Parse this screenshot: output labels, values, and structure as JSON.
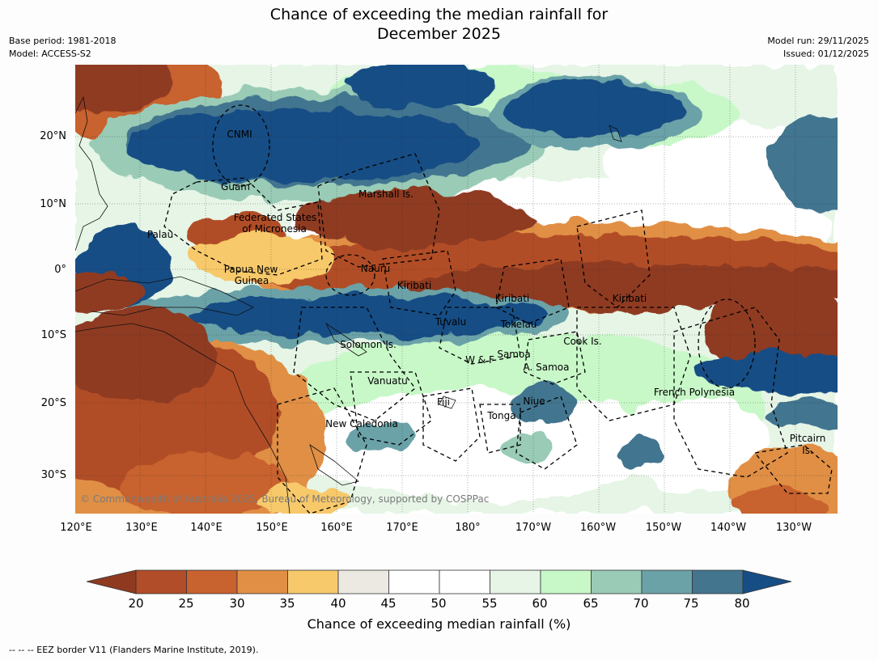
{
  "title_line1": "Chance of exceeding the median rainfall for",
  "title_line2": "December 2025",
  "base_period": "Base period: 1981-2018",
  "model": "Model: ACCESS-S2",
  "model_run": "Model run: 29/11/2025",
  "issued": "Issued: 01/12/2025",
  "copyright": "© Commonwealth of Australia 2025, Bureau of Meteorology, supported by COSPPac",
  "lat_labels": [
    "20°N",
    "10°N",
    "0°",
    "10°S",
    "20°S",
    "30°S"
  ],
  "lon_labels": [
    "120°E",
    "130°E",
    "140°E",
    "150°E",
    "160°E",
    "170°E",
    "180°",
    "170°W",
    "160°W",
    "150°W",
    "140°W",
    "130°W"
  ],
  "places": {
    "cnmi": "CNMI",
    "guam": "Guam",
    "marshall": "Marshall Is.",
    "fsm1": "Federated States",
    "fsm2": "of Micronesia",
    "palau": "Palau",
    "png1": "Papua New",
    "png2": "Guinea",
    "nauru": "Nauru",
    "kiribati_w": "Kiribati",
    "kiribati_c": "Kiribati",
    "kiribati_e": "Kiribati",
    "tuvalu": "Tuvalu",
    "tokelau": "Tokelau",
    "cook": "Cook Is.",
    "solomon": "Solomon Is.",
    "wf": "W & F",
    "samoa": "Samoa",
    "asamoa": "A. Samoa",
    "vanuatu": "Vanuatu",
    "fiji": "Fiji",
    "niue": "Niue",
    "tonga": "Tonga",
    "french_polynesia": "French Polynesia",
    "new_caledonia": "New Caledonia",
    "pitcairn1": "Pitcairn",
    "pitcairn2": "Is."
  },
  "colorbar": {
    "ticks": [
      "20",
      "25",
      "30",
      "35",
      "40",
      "45",
      "50",
      "55",
      "60",
      "65",
      "70",
      "75",
      "80"
    ],
    "colors": [
      "#8f3a20",
      "#b14d28",
      "#c8622e",
      "#e08f45",
      "#f8c96b",
      "#ebe9e2",
      "#ffffff",
      "#ffffff",
      "#e6f5e6",
      "#c8f8c8",
      "#99cbb6",
      "#6ba2a8",
      "#43758f",
      "#174d85"
    ],
    "title": "Chance of exceeding median rainfall (%)"
  },
  "footer": "--  --  -- EEZ border V11 (Flanders Marine Institute, 2019)."
}
